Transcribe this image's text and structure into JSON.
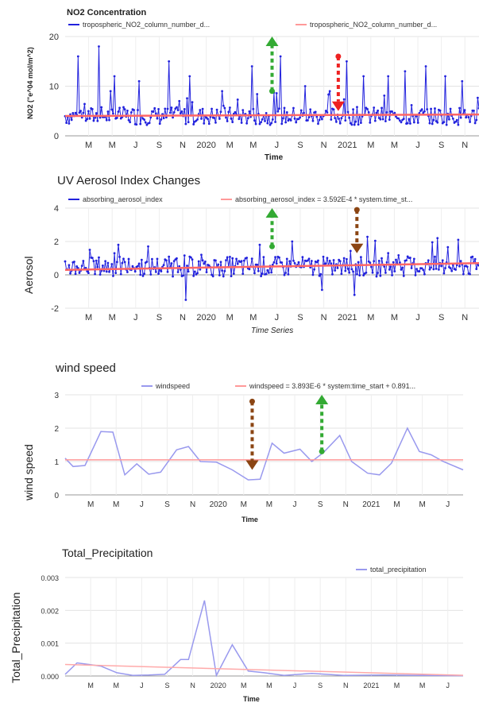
{
  "chart_data": [
    {
      "type": "line",
      "title": "NO2 Concentration",
      "ylabel": "NO2 (\"e^04 mol/m^2)",
      "xlabel": "Time",
      "ylim": [
        0,
        20
      ],
      "yticks": [
        "0",
        "10",
        "20"
      ],
      "xticks": [
        "M",
        "M",
        "J",
        "S",
        "N",
        "2020",
        "M",
        "M",
        "J",
        "S",
        "N",
        "2021",
        "M",
        "M",
        "J",
        "S",
        "N"
      ],
      "series": [
        {
          "name": "tropospheric_NO2_column_number_d...",
          "color": "#2222dd",
          "style": "line-markers",
          "x_range": [
            0,
            1
          ],
          "mean": 4,
          "noise": 1.8,
          "spikes": [
            [
              0.03,
              16
            ],
            [
              0.08,
              18
            ],
            [
              0.12,
              12
            ],
            [
              0.18,
              11
            ],
            [
              0.25,
              15
            ],
            [
              0.3,
              12
            ],
            [
              0.38,
              9
            ],
            [
              0.45,
              14
            ],
            [
              0.52,
              16
            ],
            [
              0.58,
              10
            ],
            [
              0.64,
              9
            ],
            [
              0.68,
              15
            ],
            [
              0.72,
              12
            ],
            [
              0.78,
              12
            ],
            [
              0.82,
              13
            ],
            [
              0.87,
              14
            ],
            [
              0.92,
              12
            ],
            [
              0.96,
              11
            ]
          ]
        },
        {
          "name": "tropospheric_NO2_column_number_d...",
          "color": "#ff6666",
          "style": "trend",
          "values": [
            [
              0,
              4
            ],
            [
              1,
              4.3
            ]
          ]
        }
      ],
      "annotations": [
        {
          "type": "arrow-up",
          "color": "#33aa33",
          "x": 0.5,
          "from": 9,
          "to": 20
        },
        {
          "type": "arrow-down",
          "color": "#ee2222",
          "x": 0.66,
          "from": 16,
          "to": 5
        }
      ]
    },
    {
      "type": "line",
      "title": "UV Aerosol Index Changes",
      "ylabel": "Aerosol",
      "xlabel": "Time Series",
      "ylim": [
        -2,
        4
      ],
      "yticks": [
        "-2",
        "0",
        "2",
        "4"
      ],
      "xticks": [
        "M",
        "M",
        "J",
        "S",
        "N",
        "2020",
        "M",
        "M",
        "J",
        "S",
        "N",
        "2021",
        "M",
        "M",
        "J",
        "S",
        "N"
      ],
      "series": [
        {
          "name": "absorbing_aerosol_index",
          "color": "#2222dd",
          "style": "line-markers",
          "x_range": [
            0,
            1
          ],
          "mean": 0.5,
          "noise": 0.6,
          "spikes": [
            [
              0.06,
              1.5
            ],
            [
              0.13,
              1.8
            ],
            [
              0.2,
              1.7
            ],
            [
              0.29,
              -1.5
            ],
            [
              0.33,
              1.2
            ],
            [
              0.47,
              1.8
            ],
            [
              0.55,
              2
            ],
            [
              0.62,
              -0.9
            ],
            [
              0.7,
              -1.2
            ],
            [
              0.78,
              1.3
            ],
            [
              0.9,
              2.2
            ],
            [
              0.95,
              2.1
            ]
          ]
        },
        {
          "name": "absorbing_aerosol_index = 3.592E-4 * system.time_st...",
          "color": "#ff6666",
          "style": "trend",
          "values": [
            [
              0,
              0.3
            ],
            [
              1,
              0.7
            ]
          ]
        }
      ],
      "annotations": [
        {
          "type": "arrow-up",
          "color": "#33aa33",
          "x": 0.5,
          "from": 1.7,
          "to": 4
        },
        {
          "type": "arrow-down",
          "color": "#8b4513",
          "x": 0.705,
          "from": 3.9,
          "to": 1.3
        }
      ]
    },
    {
      "type": "line",
      "title": "wind speed",
      "ylabel": "wind speed",
      "xlabel": "Time",
      "ylim": [
        0,
        3
      ],
      "yticks": [
        "0",
        "1",
        "2",
        "3"
      ],
      "xticks": [
        "M",
        "M",
        "J",
        "S",
        "N",
        "2020",
        "M",
        "M",
        "J",
        "S",
        "N",
        "2021",
        "M",
        "M",
        "J"
      ],
      "series": [
        {
          "name": "windspeed",
          "color": "#9999ee",
          "style": "line",
          "values": [
            [
              0,
              1.1
            ],
            [
              0.02,
              0.85
            ],
            [
              0.05,
              0.88
            ],
            [
              0.09,
              1.9
            ],
            [
              0.12,
              1.88
            ],
            [
              0.15,
              0.6
            ],
            [
              0.18,
              0.93
            ],
            [
              0.21,
              0.62
            ],
            [
              0.24,
              0.68
            ],
            [
              0.28,
              1.35
            ],
            [
              0.31,
              1.45
            ],
            [
              0.34,
              1.0
            ],
            [
              0.38,
              0.98
            ],
            [
              0.42,
              0.75
            ],
            [
              0.46,
              0.45
            ],
            [
              0.49,
              0.47
            ],
            [
              0.52,
              1.55
            ],
            [
              0.55,
              1.25
            ],
            [
              0.59,
              1.37
            ],
            [
              0.62,
              1.0
            ],
            [
              0.65,
              1.28
            ],
            [
              0.69,
              1.78
            ],
            [
              0.72,
              1.0
            ],
            [
              0.76,
              0.65
            ],
            [
              0.79,
              0.6
            ],
            [
              0.82,
              0.95
            ],
            [
              0.86,
              2.0
            ],
            [
              0.89,
              1.3
            ],
            [
              0.92,
              1.2
            ],
            [
              0.95,
              1.0
            ],
            [
              1.0,
              0.75
            ]
          ]
        },
        {
          "name": "windspeed = 3.893E-6 * system:time_start + 0.891...",
          "color": "#ff9999",
          "style": "trend",
          "values": [
            [
              0,
              1.05
            ],
            [
              1,
              1.05
            ]
          ]
        }
      ],
      "annotations": [
        {
          "type": "arrow-down",
          "color": "#8b4513",
          "x": 0.47,
          "from": 2.8,
          "to": 0.75
        },
        {
          "type": "arrow-up",
          "color": "#33aa33",
          "x": 0.645,
          "from": 1.3,
          "to": 3
        }
      ]
    },
    {
      "type": "line",
      "title": "Total_Precipitation",
      "ylabel": "Total_Precipitation",
      "xlabel": "Time",
      "ylim": [
        0,
        0.003
      ],
      "yticks": [
        "0.000",
        "0.001",
        "0.002",
        "0.003"
      ],
      "xticks": [
        "M",
        "M",
        "J",
        "S",
        "N",
        "2020",
        "M",
        "M",
        "J",
        "S",
        "N",
        "2021",
        "M",
        "M",
        "J"
      ],
      "series": [
        {
          "name": "total_precipitation",
          "color": "#9999ee",
          "style": "line",
          "values": [
            [
              0,
              5e-05
            ],
            [
              0.03,
              0.0004
            ],
            [
              0.06,
              0.00035
            ],
            [
              0.09,
              0.0003
            ],
            [
              0.13,
              0.0001
            ],
            [
              0.17,
              2e-05
            ],
            [
              0.21,
              3e-05
            ],
            [
              0.25,
              5e-05
            ],
            [
              0.29,
              0.0005
            ],
            [
              0.31,
              0.0005
            ],
            [
              0.35,
              0.0023
            ],
            [
              0.38,
              2e-05
            ],
            [
              0.42,
              0.00095
            ],
            [
              0.46,
              0.00015
            ],
            [
              0.5,
              0.0001
            ],
            [
              0.55,
              2e-05
            ],
            [
              0.62,
              8e-05
            ],
            [
              0.7,
              2e-05
            ],
            [
              0.8,
              3e-05
            ],
            [
              0.9,
              2e-05
            ],
            [
              1.0,
              1e-05
            ]
          ]
        },
        {
          "name": "",
          "color": "#ffaaaa",
          "style": "trend",
          "values": [
            [
              0,
              0.00035
            ],
            [
              1,
              2e-05
            ]
          ]
        }
      ],
      "annotations": []
    }
  ]
}
